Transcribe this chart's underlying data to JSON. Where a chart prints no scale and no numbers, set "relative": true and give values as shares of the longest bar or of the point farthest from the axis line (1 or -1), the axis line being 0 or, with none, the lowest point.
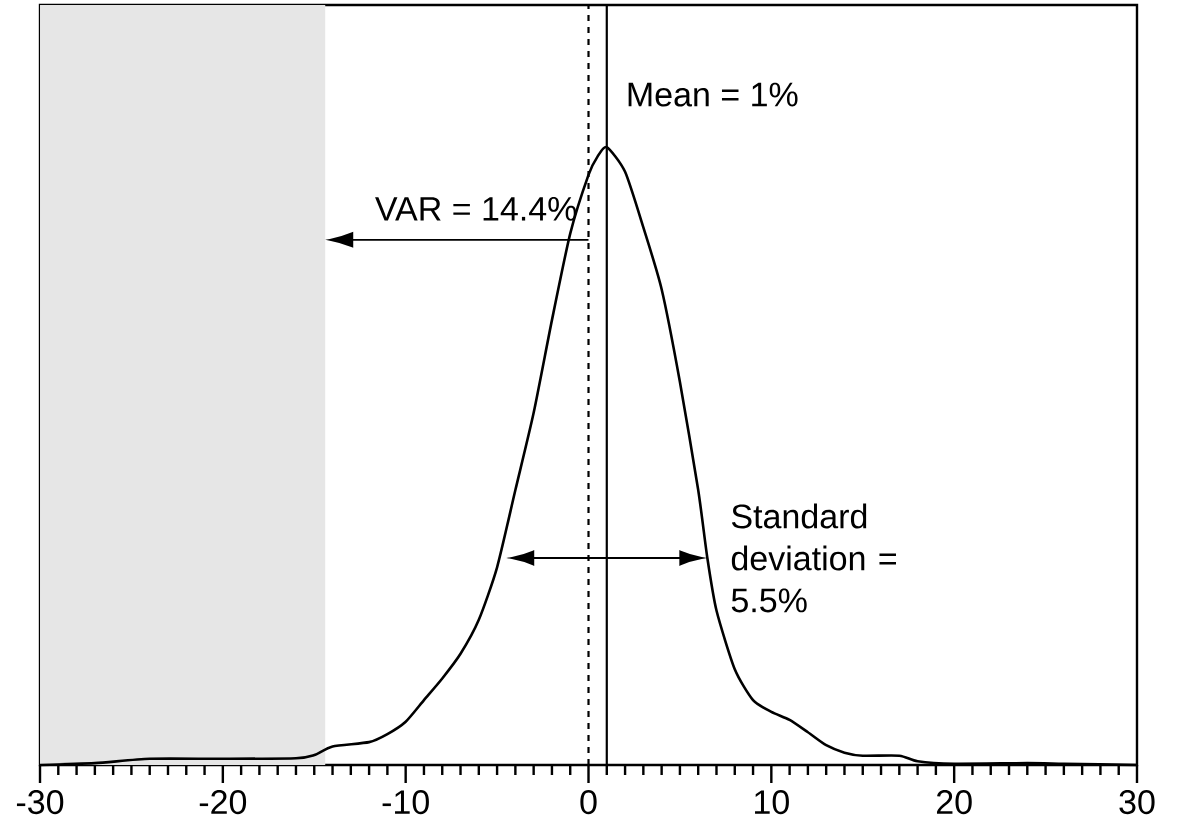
{
  "chart_data": {
    "type": "line",
    "relative": true,
    "marker": "none",
    "line_style": "solid",
    "x": [
      -30,
      -27,
      -24,
      -20,
      -16,
      -15,
      -14,
      -12,
      -11,
      -10,
      -9,
      -8,
      -7,
      -6,
      -5,
      -4,
      -3,
      -2,
      -1,
      0,
      0.5,
      1,
      2,
      3,
      4,
      5,
      6,
      6.5,
      7,
      8,
      9,
      10,
      11,
      12,
      13,
      14,
      15,
      17,
      18,
      20,
      24,
      26,
      30
    ],
    "series": [
      {
        "color": "#000000",
        "values": [
          0,
          0.003,
          0.01,
          0.01,
          0.011,
          0.016,
          0.03,
          0.037,
          0.05,
          0.07,
          0.105,
          0.14,
          0.18,
          0.235,
          0.32,
          0.445,
          0.57,
          0.72,
          0.86,
          0.955,
          0.985,
          1,
          0.96,
          0.87,
          0.77,
          0.62,
          0.445,
          0.335,
          0.25,
          0.155,
          0.105,
          0.086,
          0.073,
          0.053,
          0.032,
          0.02,
          0.015,
          0.015,
          0.006,
          0.002,
          0.003,
          0.002,
          0
        ]
      }
    ],
    "xlim": [
      -30,
      30
    ],
    "xticks": [
      -30,
      -20,
      -10,
      0,
      10,
      20,
      30
    ],
    "ref_lines": [
      {
        "axis": "x",
        "value": 0,
        "line_style": "dashed"
      },
      {
        "axis": "x",
        "value": 1,
        "label": "Mean = 1%"
      }
    ],
    "bands": [
      {
        "axis": "x",
        "from": -30,
        "to": -14.4,
        "color": "#e6e6e6"
      }
    ],
    "annotations": [
      {
        "text": "VAR = 14.4%",
        "x": -14.4,
        "y": 0.85
      },
      {
        "text": "Standard deviation = 5.5%",
        "x": 6.5,
        "y": 0.335
      }
    ],
    "grid": false
  }
}
